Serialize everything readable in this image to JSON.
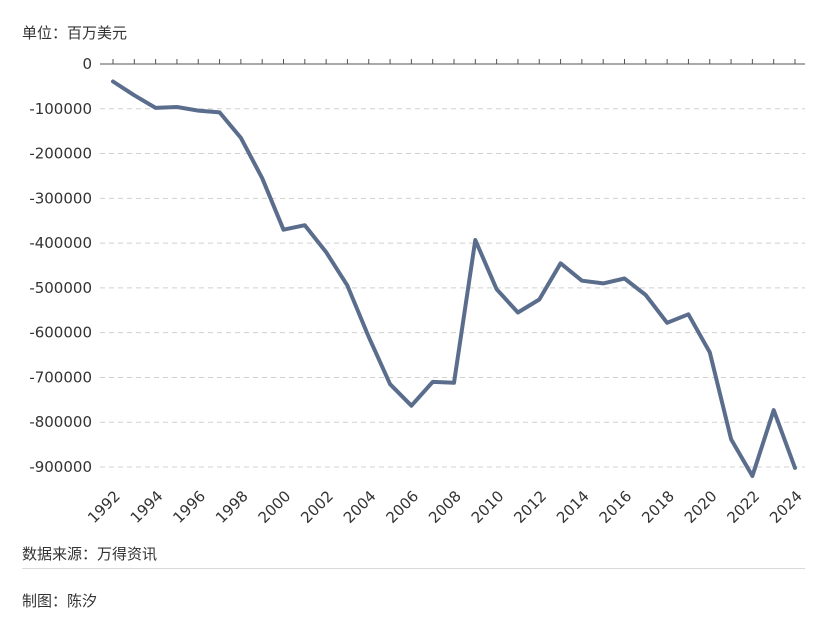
{
  "header": {
    "unit": "单位：百万美元"
  },
  "footer": {
    "source": "数据来源：万得资讯",
    "author": "制图：陈汐"
  },
  "colors": {
    "line": "#5b6d8c",
    "grid": "#d0d0d0",
    "axis": "#555555"
  },
  "chart_data": {
    "type": "line",
    "title": "",
    "xlabel": "",
    "ylabel": "",
    "ylim": [
      -900000,
      0
    ],
    "yticks": [
      0,
      -100000,
      -200000,
      -300000,
      -400000,
      -500000,
      -600000,
      -700000,
      -800000,
      -900000
    ],
    "ytick_labels": [
      "0",
      "-100000",
      "-200000",
      "-300000",
      "-400000",
      "-500000",
      "-600000",
      "-700000",
      "-800000",
      "-900000"
    ],
    "xtick_labels": [
      "1992",
      "1994",
      "1996",
      "1998",
      "2000",
      "2002",
      "2004",
      "2006",
      "2008",
      "2010",
      "2012",
      "2014",
      "2016",
      "2018",
      "2020",
      "2022",
      "2024"
    ],
    "grid": true,
    "legend": "none",
    "x": [
      1992,
      1993,
      1994,
      1995,
      1996,
      1997,
      1998,
      1999,
      2000,
      2001,
      2002,
      2003,
      2004,
      2005,
      2006,
      2007,
      2008,
      2009,
      2010,
      2011,
      2012,
      2013,
      2014,
      2015,
      2016,
      2017,
      2018,
      2019,
      2020,
      2021,
      2022,
      2023,
      2024
    ],
    "series": [
      {
        "values": [
          -39000,
          -70000,
          -98000,
          -96000,
          -104000,
          -108000,
          -165000,
          -255000,
          -370000,
          -360000,
          -420000,
          -495000,
          -610000,
          -715000,
          -763000,
          -710000,
          -712000,
          -393000,
          -503000,
          -555000,
          -526000,
          -445000,
          -484000,
          -490000,
          -479000,
          -516000,
          -578000,
          -559000,
          -644000,
          -838000,
          -920000,
          -773000,
          -902000
        ]
      }
    ]
  }
}
